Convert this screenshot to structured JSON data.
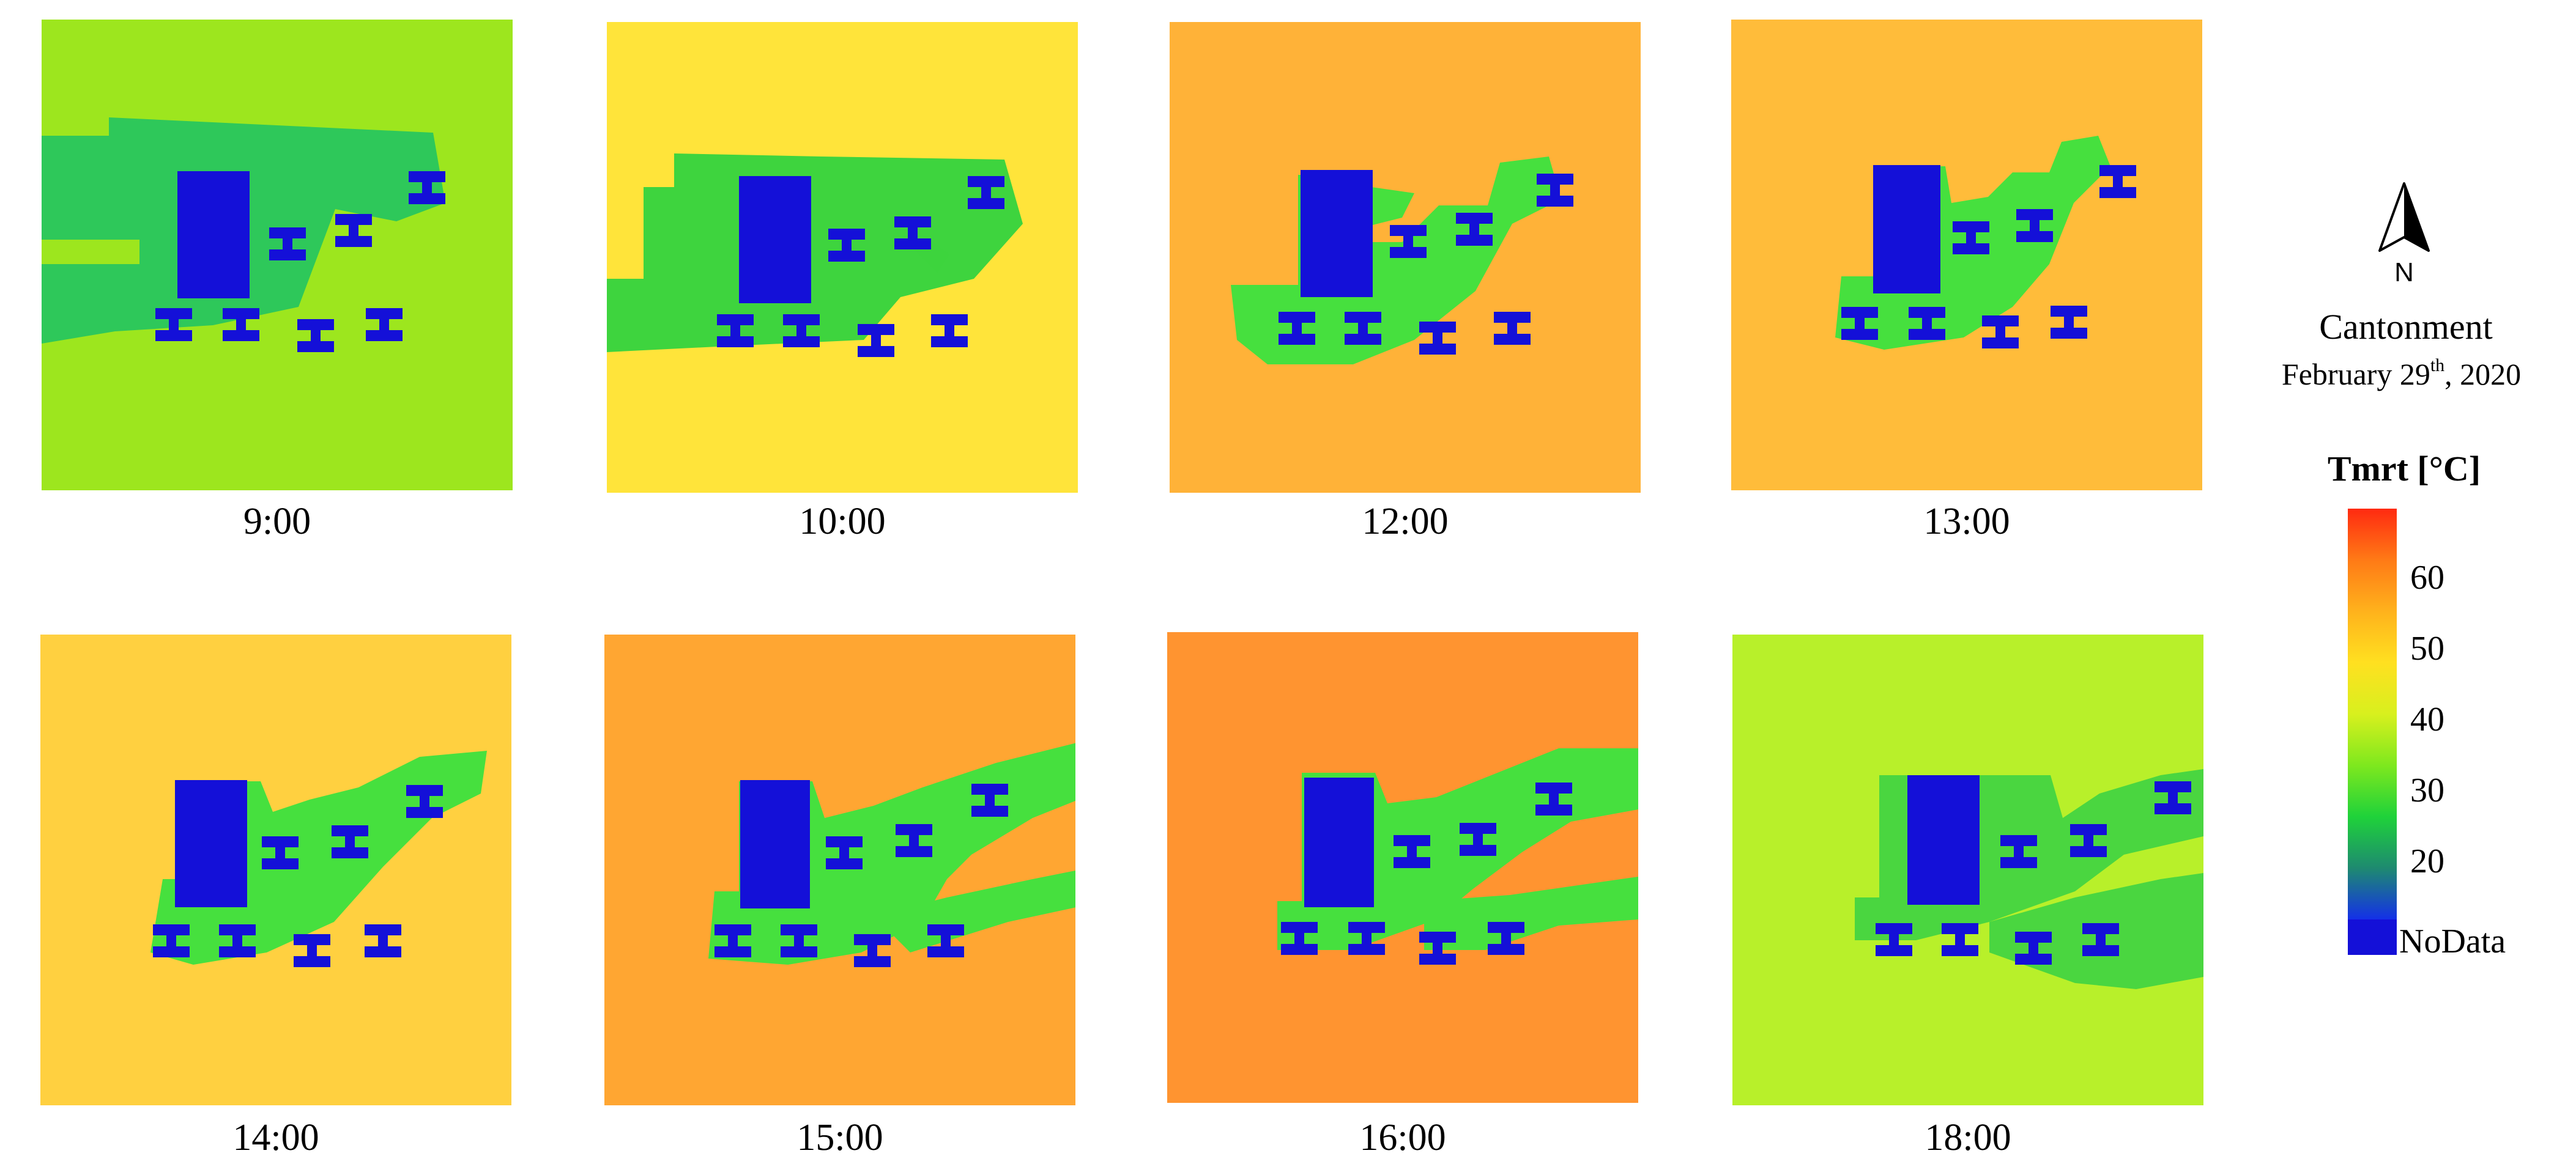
{
  "site_label": "Cantonment",
  "date_main": "February 29",
  "date_sup": "th",
  "date_year": ", 2020",
  "north_label": "N",
  "legend": {
    "title": "Tmrt [°C]",
    "ticks": [
      "60",
      "50",
      "40",
      "30",
      "20"
    ],
    "nodata_label": "NoData",
    "nodata_color": "#1410d8",
    "gradient": [
      "#1430e8",
      "#1e8a70",
      "#1fd23a",
      "#7ee81e",
      "#d8f01e",
      "#ffe020",
      "#ffb21c",
      "#ff7a16",
      "#ff2a10"
    ]
  },
  "panels": [
    {
      "time": "9:00",
      "background": "#9de61e",
      "shadow": "#2ec85a"
    },
    {
      "time": "10:00",
      "background": "#ffe43a",
      "shadow": "#3ed43e"
    },
    {
      "time": "12:00",
      "background": "#ffb238",
      "shadow": "#46e03e"
    },
    {
      "time": "13:00",
      "background": "#ffbc3a",
      "shadow": "#46e03e"
    },
    {
      "time": "14:00",
      "background": "#ffd040",
      "shadow": "#46e03e"
    },
    {
      "time": "15:00",
      "background": "#ffa632",
      "shadow": "#46e03e"
    },
    {
      "time": "16:00",
      "background": "#ff9430",
      "shadow": "#46e03e"
    },
    {
      "time": "18:00",
      "background": "#b8f02a",
      "shadow": "#4ad640"
    }
  ]
}
